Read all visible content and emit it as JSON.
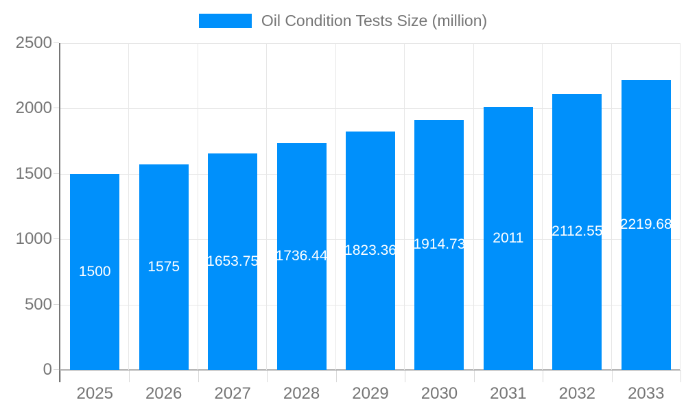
{
  "chart_data": {
    "type": "bar",
    "title": "Oil Condition Tests Size (million)",
    "categories": [
      "2025",
      "2026",
      "2027",
      "2028",
      "2029",
      "2030",
      "2031",
      "2032",
      "2033"
    ],
    "values": [
      1500,
      1575,
      1653.75,
      1736.44,
      1823.36,
      1914.73,
      2011,
      2112.55,
      2219.68
    ],
    "value_labels": [
      "1500",
      "1575",
      "1653.75",
      "1736.44",
      "1823.36",
      "1914.73",
      "2011",
      "2112.55",
      "2219.68"
    ],
    "xlabel": "",
    "ylabel": "",
    "ylim": [
      0,
      2500
    ],
    "yticks": [
      0,
      500,
      1000,
      1500,
      2000,
      2500
    ],
    "grid": true,
    "legend_position": "top",
    "colors": {
      "bar": "#0090FB",
      "bar_value_text": "#ffffff",
      "axis_text": "#757575",
      "gridline": "#e7e7e7",
      "y_axis_line": "#757575",
      "x_axis_line": "#b0b0b0",
      "tick_mark": "#d9d9d9"
    }
  }
}
